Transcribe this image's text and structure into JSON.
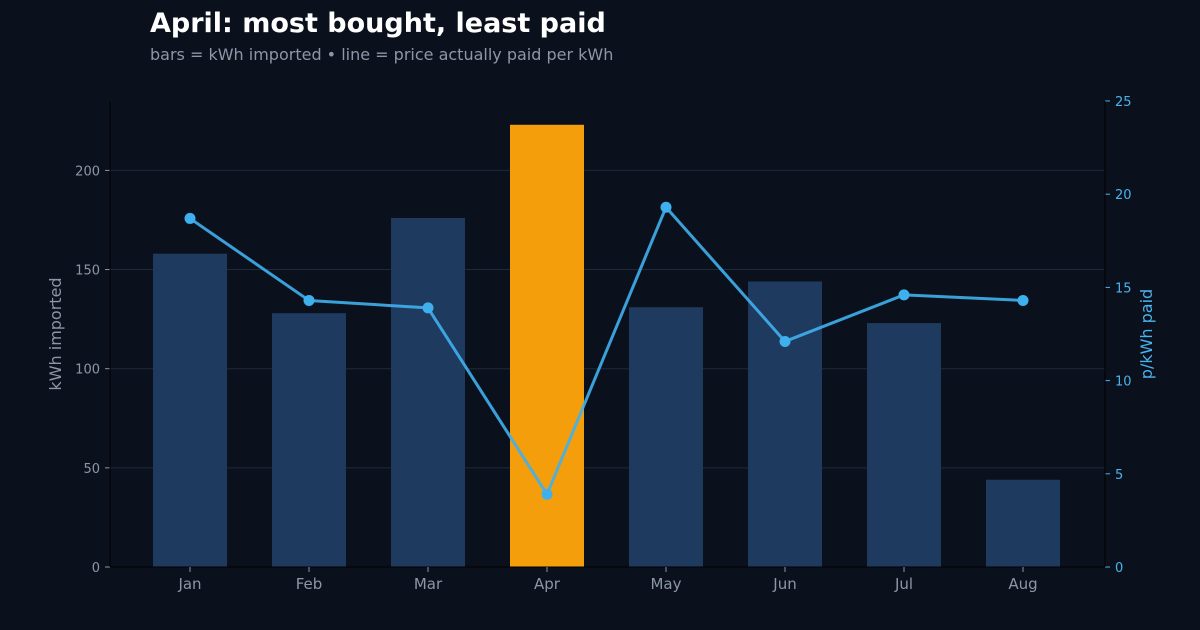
{
  "colors": {
    "background": "#0b111c",
    "bar": "#1e3a5f",
    "highlight_bar": "#f59e0b",
    "line": "#3fb0ee",
    "title": "#ffffff",
    "subtitle": "#8b97a8",
    "left_axis_text": "#8b97a8",
    "right_axis_text": "#4ab3ee",
    "grid": "#1c2a3a"
  },
  "chart_data": {
    "type": "bar",
    "title": "April: most bought, least paid",
    "subtitle": "bars = kWh imported • line = price actually paid per kWh",
    "ylabel": "kWh imported",
    "y2label": "p/kWh paid",
    "categories": [
      "Jan",
      "Feb",
      "Mar",
      "Apr",
      "May",
      "Jun",
      "Jul",
      "Aug"
    ],
    "highlight_category": "Apr",
    "ylim": [
      0,
      235
    ],
    "y2lim": [
      0,
      25
    ],
    "yticks": [
      0,
      50,
      100,
      150,
      200
    ],
    "y2ticks": [
      0,
      5,
      10,
      15,
      20,
      25
    ],
    "grid": true,
    "series": [
      {
        "type": "bar",
        "axis": "left",
        "values": [
          158,
          128,
          176,
          223,
          131,
          144,
          123,
          44
        ]
      },
      {
        "type": "line",
        "axis": "right",
        "values": [
          18.7,
          14.3,
          13.9,
          3.9,
          19.3,
          12.1,
          14.6,
          14.3
        ]
      }
    ]
  }
}
